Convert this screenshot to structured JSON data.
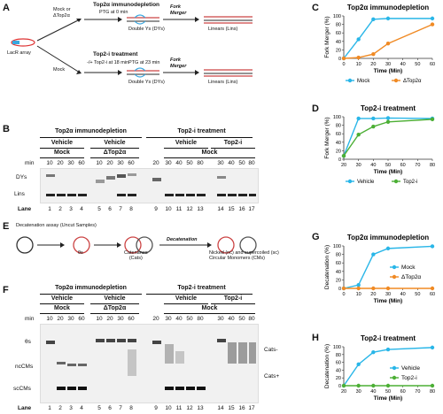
{
  "panels": {
    "A": {
      "letter": "A",
      "mock_or_delta": "Mock or\nΔTop2α",
      "mock": "Mock",
      "lacr_array": "LacR array",
      "ptg_top": "PTG at 0 min",
      "ptg_bottom": "PTG at 23 min",
      "top2_immunodepletion": "Top2α immunodepletion",
      "top2i_treatment": "Top2-i treatment",
      "plus_minus_top2i": "-/+ Top2-i at 18 min",
      "double_ys": "Double Ys (DYs)",
      "fork_merger": "Fork\nMerger",
      "linears": "Linears (Lins)"
    },
    "B": {
      "letter": "B",
      "group1_title": "Top2α immunodepletion",
      "group2_title": "Top2-i treatment",
      "vehicle": "Vehicle",
      "mock": "Mock",
      "delta": "ΔTop2α",
      "top2i": "Top2-i",
      "min_label": "min",
      "times_left": [
        "10",
        "20",
        "30",
        "60",
        "10",
        "20",
        "30",
        "60"
      ],
      "times_right": [
        "20",
        "30",
        "40",
        "50",
        "80",
        "30",
        "40",
        "50",
        "80"
      ],
      "dys": "DYs",
      "lins": "Lins",
      "lane_label": "Lane",
      "lanes": [
        "1",
        "2",
        "3",
        "4",
        "5",
        "6",
        "7",
        "8",
        "9",
        "10",
        "11",
        "12",
        "13",
        "14",
        "15",
        "16",
        "17"
      ]
    },
    "E": {
      "letter": "E",
      "title": "Decatenation assay (Uncut Samples)",
      "theta": "θs",
      "catenanes": "Catenanes\n(Cats)",
      "decatenation": "Decatenation",
      "nicked": "Nicked (nc) and supercoiled (sc)\nCircular Monomers (CMs)"
    },
    "F": {
      "letter": "F",
      "group1_title": "Top2α immunodepletion",
      "group2_title": "Top2-i treatment",
      "vehicle": "Vehicle",
      "mock": "Mock",
      "delta": "ΔTop2α",
      "top2i": "Top2-i",
      "min_label": "min",
      "times_left": [
        "10",
        "20",
        "30",
        "60",
        "10",
        "20",
        "30",
        "60"
      ],
      "times_right": [
        "20",
        "30",
        "40",
        "50",
        "80",
        "30",
        "40",
        "50",
        "80"
      ],
      "theta": "θs",
      "ncms": "ncCMs",
      "sccms": "scCMs",
      "cats_minus": "Cats-",
      "cats_plus": "Cats+",
      "lane_label": "Lane",
      "lanes": [
        "1",
        "2",
        "3",
        "4",
        "5",
        "6",
        "7",
        "8",
        "9",
        "10",
        "11",
        "12",
        "13",
        "14",
        "15",
        "16",
        "17"
      ]
    },
    "C": {
      "letter": "C"
    },
    "D": {
      "letter": "D"
    },
    "G": {
      "letter": "G"
    },
    "H": {
      "letter": "H"
    }
  },
  "chart_data": [
    {
      "id": "C",
      "type": "line",
      "title": "Top2α immunodepletion",
      "xlabel": "Time (Min)",
      "ylabel": "Fork Merger (%)",
      "x": [
        0,
        10,
        20,
        30,
        60
      ],
      "xticks": [
        0,
        10,
        20,
        30,
        40,
        50,
        60
      ],
      "yticks": [
        0,
        20,
        40,
        60,
        80,
        100
      ],
      "xlim": [
        0,
        60
      ],
      "ylim": [
        0,
        100
      ],
      "legend": "bottom",
      "series": [
        {
          "name": "Mock",
          "color": "#29b6e8",
          "values": [
            0,
            45,
            92,
            94,
            94
          ]
        },
        {
          "name": "ΔTop2α",
          "color": "#f08a24",
          "values": [
            0,
            2,
            10,
            35,
            80
          ]
        }
      ]
    },
    {
      "id": "D",
      "type": "line",
      "title": "Top2-i treatment",
      "xlabel": "Time (Min)",
      "ylabel": "Fork Merger (%)",
      "x": [
        20,
        30,
        40,
        50,
        80
      ],
      "xticks": [
        20,
        30,
        40,
        50,
        60,
        70,
        80
      ],
      "yticks": [
        0,
        20,
        40,
        60,
        80,
        100
      ],
      "xlim": [
        20,
        80
      ],
      "ylim": [
        0,
        100
      ],
      "legend": "bottom",
      "series": [
        {
          "name": "Vehicle",
          "color": "#29b6e8",
          "values": [
            8,
            96,
            96,
            97,
            96
          ]
        },
        {
          "name": "Top2-i",
          "color": "#4caf35",
          "values": [
            8,
            58,
            77,
            88,
            94
          ]
        }
      ]
    },
    {
      "id": "G",
      "type": "line",
      "title": "Top2α immunodepletion",
      "xlabel": "Time (Min)",
      "ylabel": "Decatenation (%)",
      "x": [
        0,
        10,
        20,
        30,
        60
      ],
      "xticks": [
        0,
        10,
        20,
        30,
        40,
        50,
        60
      ],
      "yticks": [
        0,
        20,
        40,
        60,
        80,
        100
      ],
      "xlim": [
        0,
        60
      ],
      "ylim": [
        0,
        100
      ],
      "legend": "right",
      "series": [
        {
          "name": "Mock",
          "color": "#29b6e8",
          "values": [
            0,
            8,
            80,
            94,
            99
          ]
        },
        {
          "name": "ΔTop2α",
          "color": "#f08a24",
          "values": [
            0,
            0,
            0,
            0,
            0
          ]
        }
      ]
    },
    {
      "id": "H",
      "type": "line",
      "title": "Top2-i treatment",
      "xlabel": "Time (Min)",
      "ylabel": "Decatenation (%)",
      "x": [
        20,
        30,
        40,
        50,
        80
      ],
      "xticks": [
        20,
        30,
        40,
        50,
        60,
        70,
        80
      ],
      "yticks": [
        0,
        20,
        40,
        60,
        80,
        100
      ],
      "xlim": [
        20,
        80
      ],
      "ylim": [
        0,
        100
      ],
      "legend": "right",
      "series": [
        {
          "name": "Vehicle",
          "color": "#29b6e8",
          "values": [
            0,
            55,
            86,
            93,
            98
          ]
        },
        {
          "name": "Top2-i",
          "color": "#4caf35",
          "values": [
            0,
            0,
            0,
            0,
            0
          ]
        }
      ]
    }
  ]
}
